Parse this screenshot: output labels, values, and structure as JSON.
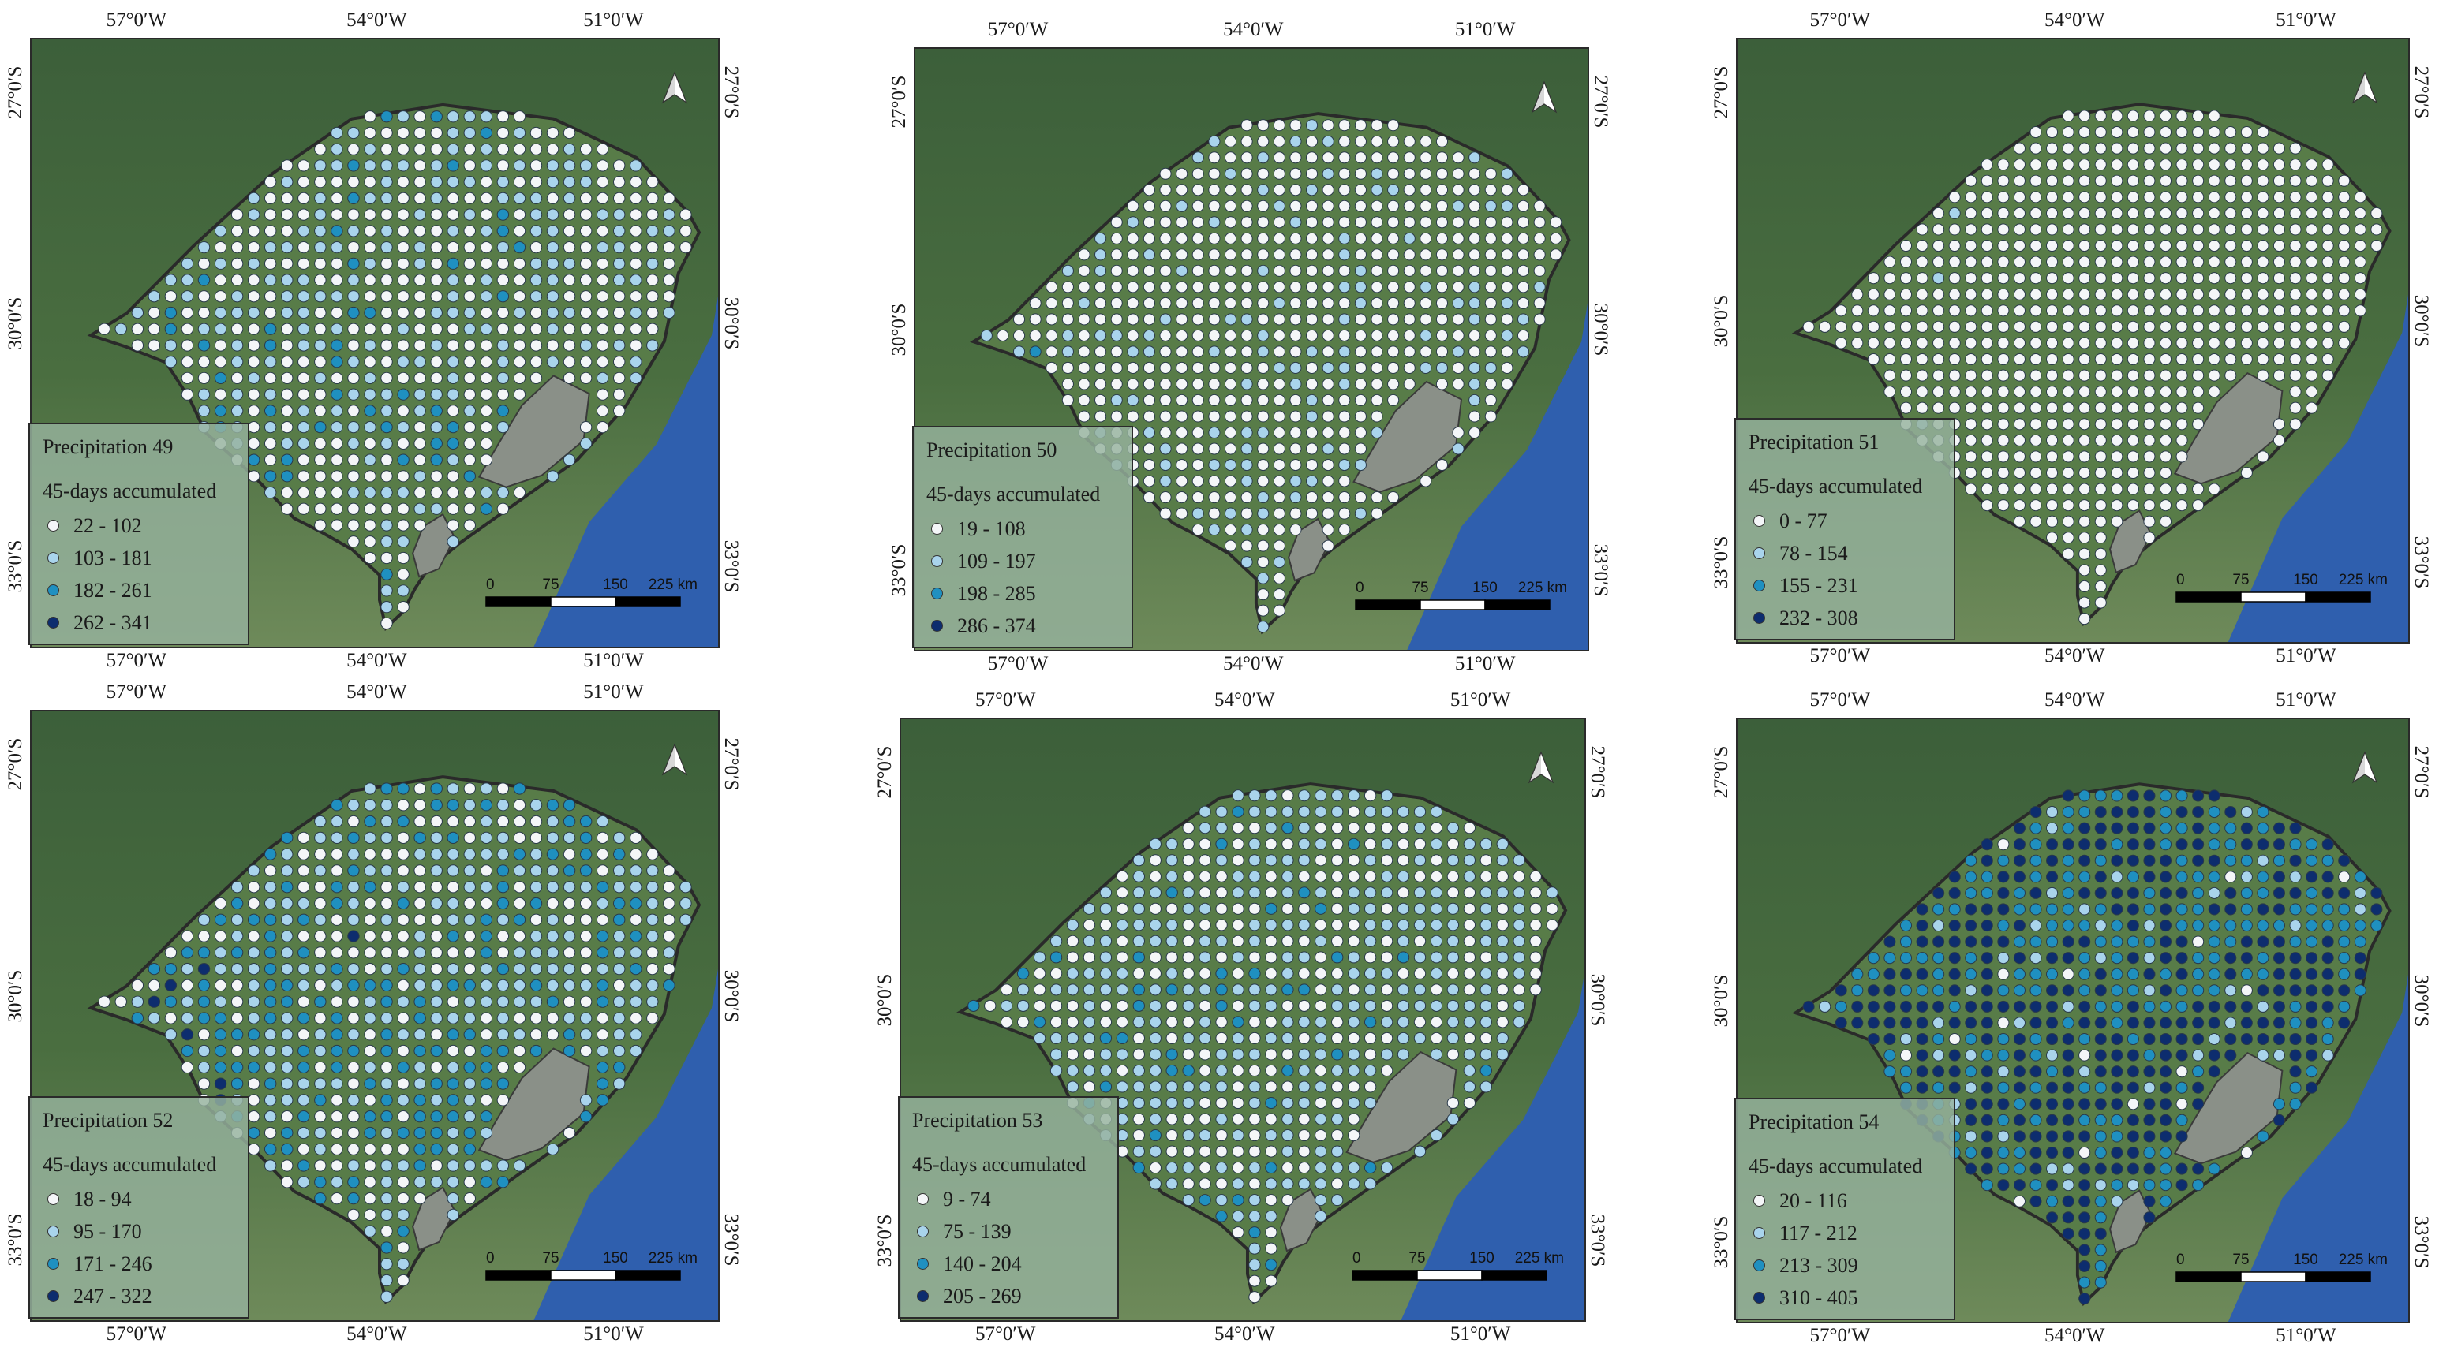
{
  "axes": {
    "lon_labels": [
      "57°0′W",
      "54°0′W",
      "51°0′W"
    ],
    "lat_labels": [
      "27°0′S",
      "30°0′S",
      "33°0′S"
    ]
  },
  "legend_subtitle": "45-days accumulated",
  "class_colors": [
    "#f4f6f8",
    "#a9d4ec",
    "#1f90c0",
    "#0d2d6e"
  ],
  "scale": {
    "ticks": [
      "0",
      "75",
      "150",
      "225 km"
    ]
  },
  "north_icon": "north-arrow-icon",
  "basemap_colors": {
    "land": "#4a6e40",
    "ocean": "#2f5fae",
    "lagoon": "#8a9088",
    "state_outline": "#2a2a2a"
  },
  "panels": [
    {
      "title": "Precipitation 49",
      "classes": [
        "22 - 102",
        "103 - 181",
        "182 - 261",
        "262 - 341"
      ],
      "mix": [
        0.55,
        0.3,
        0.12,
        0.03
      ]
    },
    {
      "title": "Precipitation 50",
      "classes": [
        "19 - 108",
        "109 - 197",
        "198 - 285",
        "286 - 374"
      ],
      "mix": [
        0.72,
        0.26,
        0.02,
        0.0
      ]
    },
    {
      "title": "Precipitation 51",
      "classes": [
        "0 - 77",
        "78 - 154",
        "155 - 231",
        "232 - 308"
      ],
      "mix": [
        0.93,
        0.06,
        0.01,
        0.0
      ]
    },
    {
      "title": "Precipitation 52",
      "classes": [
        "18 - 94",
        "95 - 170",
        "171 - 246",
        "247 - 322"
      ],
      "mix": [
        0.35,
        0.32,
        0.25,
        0.08
      ]
    },
    {
      "title": "Precipitation 53",
      "classes": [
        "9 - 74",
        "75 - 139",
        "140 - 204",
        "205 - 269"
      ],
      "mix": [
        0.42,
        0.42,
        0.14,
        0.02
      ]
    },
    {
      "title": "Precipitation 54",
      "classes": [
        "20 - 116",
        "117 - 212",
        "213 - 309",
        "310 - 405"
      ],
      "mix": [
        0.01,
        0.07,
        0.32,
        0.6
      ]
    }
  ]
}
